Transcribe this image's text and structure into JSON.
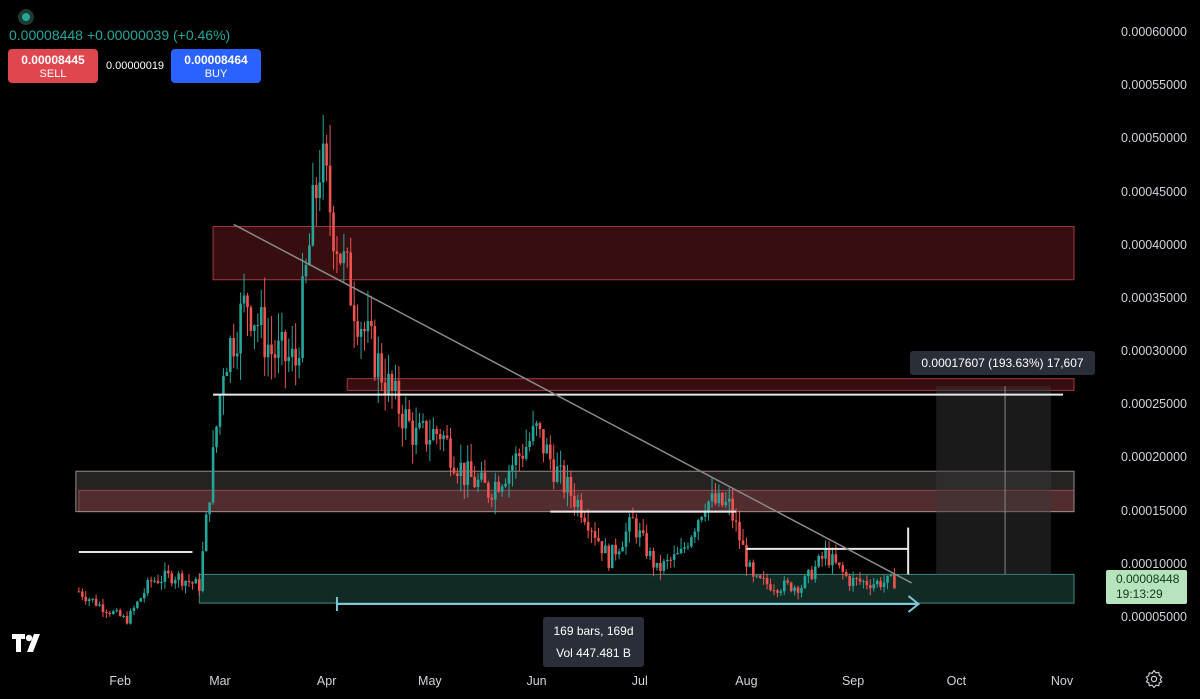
{
  "header": {
    "last_price": "0.00008448",
    "change": "+0.00000039 (+0.46%)",
    "sell_price": "0.00008445",
    "sell_label": "SELL",
    "spread": "0.00000019",
    "buy_price": "0.00008464",
    "buy_label": "BUY"
  },
  "y_axis_labels": [
    "0.00060000",
    "0.00055000",
    "0.00050000",
    "0.00045000",
    "0.00040000",
    "0.00035000",
    "0.00030000",
    "0.00025000",
    "0.00020000",
    "0.00015000",
    "0.00010000",
    "0.00005000"
  ],
  "x_axis_labels": [
    "Feb",
    "Mar",
    "Apr",
    "May",
    "Jun",
    "Jul",
    "Aug",
    "Sep",
    "Oct",
    "Nov"
  ],
  "price_tag": {
    "price": "0.00008448",
    "countdown": "19:13:29"
  },
  "measure_label": "0.00017607 (193.63%) 17,607",
  "range_label": {
    "bars": "169 bars, 169d",
    "volume": "Vol 447.481 B"
  },
  "colors": {
    "up": "#26a69a",
    "down": "#ef5350",
    "background": "#000000",
    "resistance_zone": "#7a1f24",
    "support_zone": "#1e4d43"
  },
  "icons": [
    "status-dot-icon",
    "tradingview-logo-icon",
    "settings-icon"
  ],
  "chart_data": {
    "type": "candlestick",
    "x_start": "2024-01-18",
    "x_end": "2024-11-01",
    "ylim": [
      3e-05,
      0.00062
    ],
    "closes_weekly": [
      {
        "date": "2024-01-20",
        "close": 7.5e-05
      },
      {
        "date": "2024-01-27",
        "close": 6e-05
      },
      {
        "date": "2024-02-03",
        "close": 4.8e-05
      },
      {
        "date": "2024-02-10",
        "close": 8.5e-05
      },
      {
        "date": "2024-02-17",
        "close": 9e-05
      },
      {
        "date": "2024-02-24",
        "close": 8e-05
      },
      {
        "date": "2024-03-02",
        "close": 0.00029
      },
      {
        "date": "2024-03-09",
        "close": 0.00035
      },
      {
        "date": "2024-03-16",
        "close": 0.0003
      },
      {
        "date": "2024-03-23",
        "close": 0.00029
      },
      {
        "date": "2024-03-30",
        "close": 0.00048
      },
      {
        "date": "2024-04-06",
        "close": 0.00038
      },
      {
        "date": "2024-04-13",
        "close": 0.00031
      },
      {
        "date": "2024-04-20",
        "close": 0.00026
      },
      {
        "date": "2024-04-27",
        "close": 0.00022
      },
      {
        "date": "2024-05-04",
        "close": 0.000225
      },
      {
        "date": "2024-05-11",
        "close": 0.000185
      },
      {
        "date": "2024-05-18",
        "close": 0.00017
      },
      {
        "date": "2024-05-25",
        "close": 0.000195
      },
      {
        "date": "2024-06-01",
        "close": 0.000225
      },
      {
        "date": "2024-06-08",
        "close": 0.00018
      },
      {
        "date": "2024-06-15",
        "close": 0.00015
      },
      {
        "date": "2024-06-22",
        "close": 0.000105
      },
      {
        "date": "2024-06-29",
        "close": 0.00014
      },
      {
        "date": "2024-07-06",
        "close": 9.5e-05
      },
      {
        "date": "2024-07-13",
        "close": 0.00011
      },
      {
        "date": "2024-07-20",
        "close": 0.00016
      },
      {
        "date": "2024-07-27",
        "close": 0.000155
      },
      {
        "date": "2024-08-03",
        "close": 8.5e-05
      },
      {
        "date": "2024-08-10",
        "close": 8e-05
      },
      {
        "date": "2024-08-17",
        "close": 8e-05
      },
      {
        "date": "2024-08-24",
        "close": 0.00011
      },
      {
        "date": "2024-08-31",
        "close": 8.5e-05
      },
      {
        "date": "2024-09-07",
        "close": 8.3e-05
      },
      {
        "date": "2024-09-14",
        "close": 8.45e-05
      }
    ],
    "resistance_zones": [
      [
        0.000368,
        0.000418
      ],
      [
        0.000264,
        0.000275
      ],
      [
        0.00015,
        0.00017
      ]
    ],
    "supply_band": [
      0.00015,
      0.000188
    ],
    "support_zone": [
      6.4e-05,
      9.1e-05
    ],
    "trendline": {
      "from": {
        "date": "2024-03-05",
        "price": 0.00042
      },
      "to": {
        "date": "2024-09-18",
        "price": 8.3e-05
      }
    },
    "horizontal_levels": [
      {
        "from": "2024-01-20",
        "to": "2024-02-22",
        "price": 0.000112
      },
      {
        "from": "2024-02-28",
        "to": "2024-11-01",
        "price": 0.00026
      },
      {
        "from": "2024-06-05",
        "to": "2024-07-29",
        "price": 0.00015
      },
      {
        "from": "2024-08-01",
        "to": "2024-09-17",
        "price": 0.000115
      }
    ],
    "projection": {
      "from": "2024-09-17",
      "to": "2024-11-01",
      "low": 9.1e-05,
      "high": 0.000268
    }
  }
}
